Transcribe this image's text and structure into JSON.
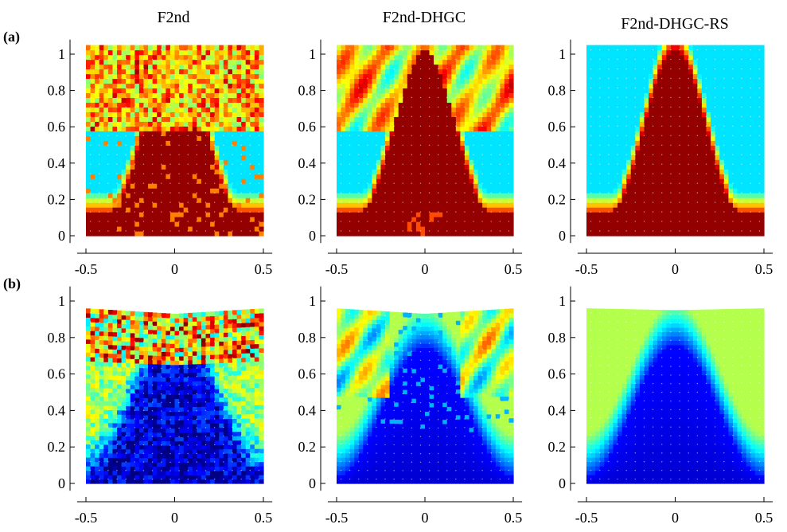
{
  "titles": [
    "F2nd",
    "F2nd-DHGC",
    "F2nd-DHGC-RS"
  ],
  "row_labels": [
    "(a)",
    "(b)"
  ],
  "colormap": "jet",
  "colors": {
    "background": "#ffffff",
    "axis": "#000000"
  },
  "chart_data": {
    "type": "heatmap",
    "layout": "2 rows x 3 columns of field plots on deformed square meshes",
    "xlim": [
      -0.5,
      0.5
    ],
    "ylim": [
      0,
      1
    ],
    "x_ticks": [
      "-0.5",
      "0",
      "0.5"
    ],
    "y_ticks": [
      "0",
      "0.2",
      "0.4",
      "0.6",
      "0.8",
      "1"
    ],
    "panels": [
      {
        "row": "(a)",
        "title": "F2nd",
        "top_edge": [
          1.05,
          1.05,
          1.05
        ],
        "dominant": "red (high)",
        "pattern": "noisy checkerboard"
      },
      {
        "row": "(a)",
        "title": "F2nd-DHGC",
        "top_edge": [
          1.05,
          1.05,
          1.05
        ],
        "dominant": "red (high)",
        "pattern": "patchy"
      },
      {
        "row": "(a)",
        "title": "F2nd-DHGC-RS",
        "top_edge": [
          1.05,
          1.05,
          1.05
        ],
        "dominant": "red (high)",
        "pattern": "smooth"
      },
      {
        "row": "(b)",
        "title": "F2nd",
        "top_edge": [
          0.96,
          0.93,
          0.96
        ],
        "dominant": "blue (low)",
        "pattern": "noisy checkerboard"
      },
      {
        "row": "(b)",
        "title": "F2nd-DHGC",
        "top_edge": [
          0.96,
          0.93,
          0.96
        ],
        "dominant": "blue (low)",
        "pattern": "patchy"
      },
      {
        "row": "(b)",
        "title": "F2nd-DHGC-RS",
        "top_edge": [
          0.96,
          0.95,
          0.96
        ],
        "dominant": "blue (low)",
        "pattern": "smooth"
      }
    ]
  }
}
